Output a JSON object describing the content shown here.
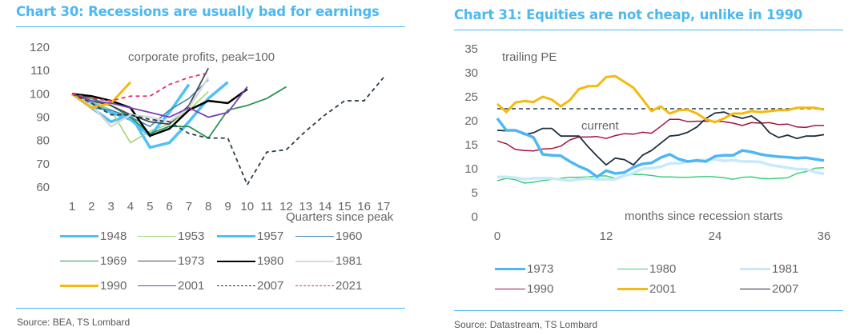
{
  "left": {
    "title": "Chart 30: Recessions are usually bad for earnings",
    "source": "Source: BEA, TS Lombard",
    "annotation": "corporate profits, peak=100",
    "xlabel": "Quarters since peak"
  },
  "right": {
    "title": "Chart 31: Equities are not cheap, unlike in 1990",
    "source": "Source: Datastream, TS Lombard",
    "annotation_ylabel": "trailing PE",
    "annotation_current": "current",
    "xlabel": "months since recession starts"
  },
  "chart_data": [
    {
      "type": "line",
      "title": "Chart 30: Recessions are usually bad for earnings",
      "annotation": "corporate profits, peak=100",
      "xlabel": "Quarters since peak",
      "ylabel": "",
      "ylim": [
        60,
        120
      ],
      "yticks": [
        60,
        70,
        80,
        90,
        100,
        110,
        120
      ],
      "xlim": [
        1,
        17
      ],
      "xticks": [
        1,
        2,
        3,
        4,
        5,
        6,
        7,
        8,
        9,
        10,
        11,
        12,
        13,
        14,
        15,
        16,
        17
      ],
      "grid": false,
      "legend_position": "bottom",
      "series": [
        {
          "name": "1948",
          "color": "#4fc1f7",
          "width": 3.5,
          "dash": "",
          "x": [
            1,
            2,
            3,
            4,
            5,
            6,
            7,
            8,
            9
          ],
          "values": [
            100,
            94,
            88,
            91,
            77,
            79,
            88,
            98,
            105
          ]
        },
        {
          "name": "1953",
          "color": "#9bd36a",
          "width": 1.5,
          "dash": "",
          "x": [
            1,
            2,
            3,
            4,
            5,
            6,
            7,
            8
          ],
          "values": [
            100,
            97,
            93,
            79,
            84,
            87,
            93,
            101
          ]
        },
        {
          "name": "1957",
          "color": "#4fc1f7",
          "width": 3.5,
          "dash": "",
          "x": [
            1,
            2,
            3,
            4,
            5,
            6,
            7
          ],
          "values": [
            100,
            96,
            92,
            89,
            82,
            92,
            104
          ]
        },
        {
          "name": "1960",
          "color": "#3a7fb0",
          "width": 1.5,
          "dash": "",
          "x": [
            1,
            2,
            3,
            4,
            5,
            6,
            7,
            8
          ],
          "values": [
            100,
            94,
            93,
            90,
            86,
            93,
            98,
            106
          ]
        },
        {
          "name": "1969",
          "color": "#2e9352",
          "width": 1.8,
          "dash": "",
          "x": [
            1,
            2,
            3,
            4,
            5,
            6,
            7,
            8,
            9,
            10,
            11,
            12
          ],
          "values": [
            100,
            98,
            95,
            90,
            83,
            86,
            86,
            81,
            93,
            95,
            98,
            103
          ]
        },
        {
          "name": "1973",
          "color": "#3b4d5a",
          "width": 1.8,
          "dash": "",
          "x": [
            1,
            2,
            3,
            4,
            5,
            6,
            7,
            8
          ],
          "values": [
            100,
            97,
            95,
            91,
            88,
            87,
            95,
            111
          ]
        },
        {
          "name": "1980",
          "color": "#000000",
          "width": 2.5,
          "dash": "",
          "x": [
            1,
            2,
            3,
            4,
            5,
            6,
            7,
            8,
            9,
            10
          ],
          "values": [
            100,
            99,
            97,
            94,
            82,
            85,
            93,
            97,
            96,
            102
          ]
        },
        {
          "name": "1981",
          "color": "#d8d8d8",
          "width": 2.5,
          "dash": "",
          "x": [
            1,
            2,
            3,
            4,
            5,
            6,
            7,
            8
          ],
          "values": [
            100,
            95,
            86,
            91,
            90,
            88,
            94,
            107
          ]
        },
        {
          "name": "1990",
          "color": "#f5b90f",
          "width": 3,
          "dash": "",
          "x": [
            1,
            2,
            3,
            4
          ],
          "values": [
            100,
            94,
            96,
            105
          ]
        },
        {
          "name": "2001",
          "color": "#7a3fb5",
          "width": 1.8,
          "dash": "",
          "x": [
            1,
            2,
            3,
            4,
            5,
            6,
            7,
            8,
            9,
            10
          ],
          "values": [
            100,
            97,
            96,
            94,
            92,
            90,
            94,
            90,
            92,
            103
          ]
        },
        {
          "name": "2007",
          "color": "#2b3e4c",
          "width": 1.8,
          "dash": "5,4",
          "x": [
            1,
            2,
            3,
            4,
            5,
            6,
            7,
            8,
            9,
            10,
            11,
            12,
            13,
            14,
            15,
            16,
            17
          ],
          "values": [
            100,
            96,
            91,
            91,
            89,
            88,
            83,
            81,
            81,
            61,
            75,
            76,
            84,
            91,
            97,
            97,
            107
          ]
        },
        {
          "name": "2021",
          "color": "#e8325f",
          "width": 1.8,
          "dash": "5,4",
          "x": [
            1,
            2,
            3,
            4,
            5,
            6,
            7,
            8
          ],
          "values": [
            100,
            98,
            97,
            99,
            99,
            104,
            107,
            109
          ]
        }
      ]
    },
    {
      "type": "line",
      "title": "Chart 31: Equities are not cheap, unlike in 1990",
      "annotation": "trailing PE",
      "xlabel": "months since recession starts",
      "ylabel": "",
      "ylim": [
        0,
        35
      ],
      "yticks": [
        0,
        5,
        10,
        15,
        20,
        25,
        30,
        35
      ],
      "xlim": [
        0,
        36
      ],
      "xticks": [
        0,
        12,
        24,
        36
      ],
      "grid": false,
      "legend_position": "bottom",
      "reference_line": {
        "label": "current",
        "value": 22.5,
        "color": "#2b3e4c",
        "dash": "5,4"
      },
      "series": [
        {
          "name": "1973",
          "color": "#4fb7f5",
          "width": 3.5,
          "x": [
            0,
            1,
            2,
            3,
            4,
            5,
            6,
            7,
            8,
            9,
            10,
            11,
            12,
            13,
            14,
            15,
            16,
            17,
            18,
            19,
            20,
            21,
            22,
            23,
            24,
            25,
            26,
            27,
            28,
            29,
            30,
            31,
            32,
            33,
            34,
            35,
            36
          ],
          "values": [
            20.5,
            18,
            18,
            17.3,
            16.5,
            13,
            12.8,
            12.7,
            11.5,
            10.5,
            9.7,
            8.3,
            9.6,
            9,
            9.2,
            10.3,
            11,
            11.2,
            12.3,
            13,
            12,
            11.5,
            11.7,
            11.5,
            12.6,
            12.8,
            12.8,
            13.8,
            13.5,
            13,
            12.7,
            12.5,
            12.4,
            12.2,
            12.3,
            12,
            11.7
          ]
        },
        {
          "name": "1980",
          "color": "#3ecf7a",
          "width": 1.5,
          "x": [
            0,
            1,
            2,
            3,
            4,
            5,
            6,
            7,
            8,
            9,
            10,
            11,
            12,
            13,
            14,
            15,
            16,
            17,
            18,
            19,
            20,
            21,
            22,
            23,
            24,
            25,
            26,
            27,
            28,
            29,
            30,
            31,
            32,
            33,
            34,
            35,
            36
          ],
          "values": [
            7.5,
            8,
            7.7,
            7,
            7.2,
            7.5,
            7.8,
            8,
            8.2,
            8.2,
            8.3,
            8.5,
            8.5,
            8,
            8.7,
            8.8,
            8.8,
            8.6,
            8.3,
            8.3,
            8.2,
            8.2,
            8.3,
            8.4,
            8.3,
            8.1,
            7.8,
            8.2,
            8.3,
            8,
            7.9,
            8,
            8.1,
            9,
            9.4,
            10.1,
            10.2
          ]
        },
        {
          "name": "1981",
          "color": "#c8e9fb",
          "width": 3.5,
          "x": [
            0,
            1,
            2,
            3,
            4,
            5,
            6,
            7,
            8,
            9,
            10,
            11,
            12,
            13,
            14,
            15,
            16,
            17,
            18,
            19,
            20,
            21,
            22,
            23,
            24,
            25,
            26,
            27,
            28,
            29,
            30,
            31,
            32,
            33,
            34,
            35,
            36
          ],
          "values": [
            8.3,
            8.3,
            8.1,
            7.8,
            8,
            8,
            8,
            7.7,
            7.5,
            7.8,
            8,
            7.8,
            7.8,
            7.8,
            8.5,
            9.1,
            10,
            10.1,
            10.4,
            11.1,
            11.1,
            11.5,
            11.8,
            11.8,
            12,
            11.6,
            11.8,
            11.5,
            11.5,
            11.4,
            10.8,
            10.5,
            10.2,
            9.9,
            9.9,
            9.3,
            8.9
          ]
        },
        {
          "name": "1990",
          "color": "#a0153e",
          "width": 1.5,
          "x": [
            0,
            1,
            2,
            3,
            4,
            5,
            6,
            7,
            8,
            9,
            10,
            11,
            12,
            13,
            14,
            15,
            16,
            17,
            18,
            19,
            20,
            21,
            22,
            23,
            24,
            25,
            26,
            27,
            28,
            29,
            30,
            31,
            32,
            33,
            34,
            35,
            36
          ],
          "values": [
            15.8,
            15.2,
            14,
            13.8,
            13.7,
            14.1,
            14.2,
            14.7,
            16,
            16.6,
            16.6,
            16.7,
            16.3,
            16.9,
            17.3,
            17.2,
            17.6,
            17.4,
            18.8,
            20.3,
            20.3,
            19.8,
            19.9,
            19.9,
            19.9,
            19.8,
            19.5,
            19,
            19.6,
            19.5,
            19.6,
            19.2,
            19.3,
            18.7,
            18.6,
            19,
            19
          ]
        },
        {
          "name": "2001",
          "color": "#f5b90f",
          "width": 3,
          "x": [
            0,
            1,
            2,
            3,
            4,
            5,
            6,
            7,
            8,
            9,
            10,
            11,
            12,
            13,
            14,
            15,
            16,
            17,
            18,
            19,
            20,
            21,
            22,
            23,
            24,
            25,
            26,
            27,
            28,
            29,
            30,
            31,
            32,
            33,
            34,
            35,
            36
          ],
          "values": [
            23.5,
            21.8,
            23.8,
            24.1,
            23.9,
            25,
            24.4,
            23,
            24.3,
            26.6,
            27.2,
            27.2,
            29.1,
            29.3,
            28.1,
            26.9,
            24.5,
            22,
            23,
            21.5,
            22.2,
            22.3,
            21.5,
            20.3,
            19.7,
            20.5,
            21.5,
            21.5,
            22,
            21.8,
            22,
            22.2,
            22.2,
            22.7,
            22.7,
            22.7,
            22.3
          ]
        },
        {
          "name": "2007",
          "color": "#1e2f3d",
          "width": 1.8,
          "x": [
            0,
            1,
            2,
            3,
            4,
            5,
            6,
            7,
            8,
            9,
            10,
            11,
            12,
            13,
            14,
            15,
            16,
            17,
            18,
            19,
            20,
            21,
            22,
            23,
            24,
            25,
            26,
            27,
            28,
            29,
            30,
            31,
            32,
            33,
            34,
            35,
            36
          ],
          "values": [
            18,
            17.9,
            17.9,
            17.1,
            17.5,
            18.4,
            18.4,
            16.8,
            16.8,
            16.8,
            14.6,
            12.6,
            10.8,
            12.2,
            11.9,
            10.8,
            12.8,
            13.8,
            15.3,
            16.8,
            17,
            17.6,
            18.7,
            20.5,
            21.6,
            21.8,
            21,
            20.5,
            21,
            19.7,
            17.5,
            16.5,
            17,
            16.3,
            16.8,
            16.8,
            17.1
          ]
        }
      ]
    }
  ]
}
